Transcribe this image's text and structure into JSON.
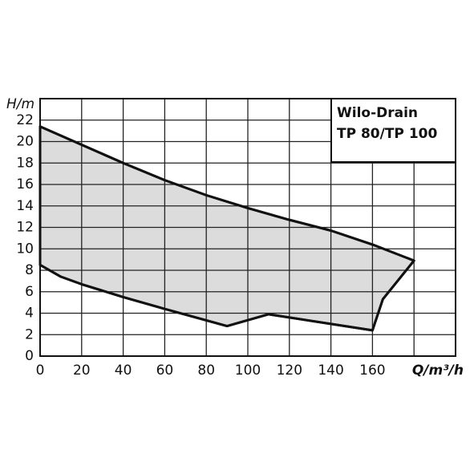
{
  "chart_data": {
    "type": "area",
    "title": "Wilo-Drain",
    "subtitle": "TP 80/TP 100",
    "x_label": "Q/m³/h",
    "y_label": "H/m",
    "x": [
      0,
      20,
      40,
      60,
      80,
      100,
      120,
      140,
      160,
      180,
      165,
      160,
      110,
      90,
      60,
      40,
      20,
      10,
      0
    ],
    "values": [
      21.4,
      19.7,
      18,
      16.4,
      15,
      13.8,
      12.7,
      11.7,
      10.4,
      8.9,
      5.3,
      2.4,
      3.9,
      2.8,
      4.4,
      5.5,
      6.7,
      7.4,
      8.5
    ],
    "color": "#dcdcdc",
    "line_color": "#111111",
    "xlim": [
      0,
      200
    ],
    "xticks": [
      0,
      20,
      40,
      60,
      80,
      100,
      120,
      140,
      160
    ],
    "ylim": [
      0,
      24
    ],
    "yticks": [
      0,
      2,
      4,
      6,
      8,
      10,
      12,
      14,
      16,
      18,
      20,
      22
    ],
    "grid": true
  }
}
